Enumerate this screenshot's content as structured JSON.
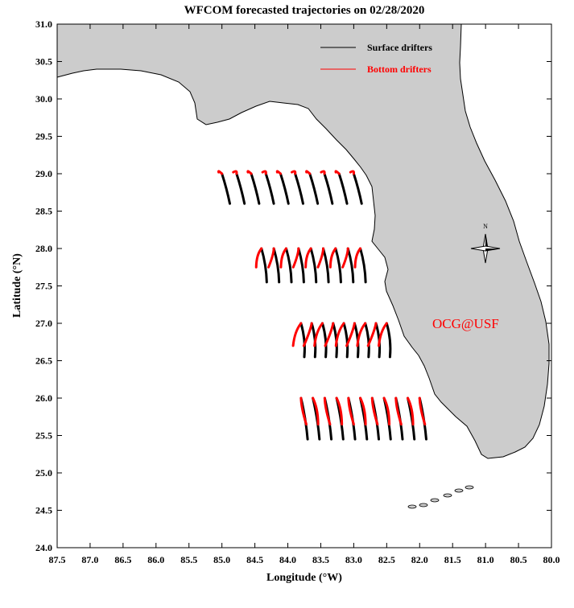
{
  "title": "WFCOM forecasted trajectories on 02/28/2020",
  "xlabel": "Longitude (°W)",
  "ylabel": "Latitude (°N)",
  "x_ticks": [
    "87.5",
    "87.0",
    "86.5",
    "86.0",
    "85.5",
    "85.0",
    "84.5",
    "84.0",
    "83.5",
    "83.0",
    "82.5",
    "82.0",
    "81.5",
    "81.0",
    "80.5",
    "80.0"
  ],
  "y_ticks": [
    "31.0",
    "30.5",
    "30.0",
    "29.5",
    "29.0",
    "28.5",
    "28.0",
    "27.5",
    "27.0",
    "26.5",
    "26.0",
    "25.5",
    "25.0",
    "24.5",
    "24.0"
  ],
  "legend": {
    "surface_label": "Surface drifters",
    "bottom_label": "Bottom drifters",
    "surface_color": "#000000",
    "bottom_color": "#ff0000"
  },
  "watermark": "OCG@USF",
  "compass_label": "N",
  "colors": {
    "land": "#cccccc",
    "coast": "#000000",
    "water": "#ffffff"
  },
  "chart_data": {
    "type": "trajectory-map",
    "xlim_degW": [
      87.5,
      80.0
    ],
    "ylim_degN": [
      24.0,
      31.0
    ],
    "release_rows": [
      {
        "lat": 29.0,
        "lon_from": 85.0,
        "lon_to": 83.0,
        "count": 10,
        "surface_drift": [
          0.12,
          -0.4
        ],
        "bottom_drift": [
          -0.05,
          0.02
        ]
      },
      {
        "lat": 28.0,
        "lon_from": 84.4,
        "lon_to": 82.9,
        "count": 9,
        "surface_drift": [
          0.08,
          -0.45
        ],
        "bottom_drift": [
          -0.08,
          -0.25
        ]
      },
      {
        "lat": 27.0,
        "lon_from": 83.8,
        "lon_to": 82.5,
        "count": 9,
        "surface_drift": [
          0.05,
          -0.45
        ],
        "bottom_drift": [
          -0.12,
          -0.3
        ]
      },
      {
        "lat": 26.0,
        "lon_from": 83.8,
        "lon_to": 82.0,
        "count": 11,
        "surface_drift": [
          0.1,
          -0.55
        ],
        "bottom_drift": [
          0.08,
          -0.35
        ]
      }
    ]
  }
}
